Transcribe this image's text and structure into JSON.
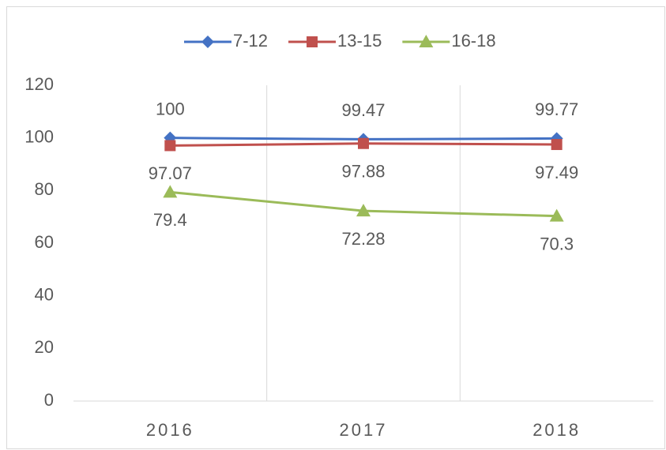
{
  "chart_data": {
    "type": "line",
    "categories": [
      "2016",
      "2017",
      "2018"
    ],
    "series": [
      {
        "name": "7-12",
        "color": "#4472c4",
        "marker": "diamond",
        "values": [
          100,
          99.47,
          99.77
        ],
        "label_position": "above"
      },
      {
        "name": "13-15",
        "color": "#c0504d",
        "marker": "square",
        "values": [
          97.07,
          97.88,
          97.49
        ],
        "label_position": "below"
      },
      {
        "name": "16-18",
        "color": "#9bbb59",
        "marker": "triangle",
        "values": [
          79.4,
          72.28,
          70.3
        ],
        "label_position": "below"
      }
    ],
    "ylim": [
      0,
      120
    ],
    "yticks": [
      0,
      20,
      40,
      60,
      80,
      100,
      120
    ],
    "legend": "top"
  }
}
